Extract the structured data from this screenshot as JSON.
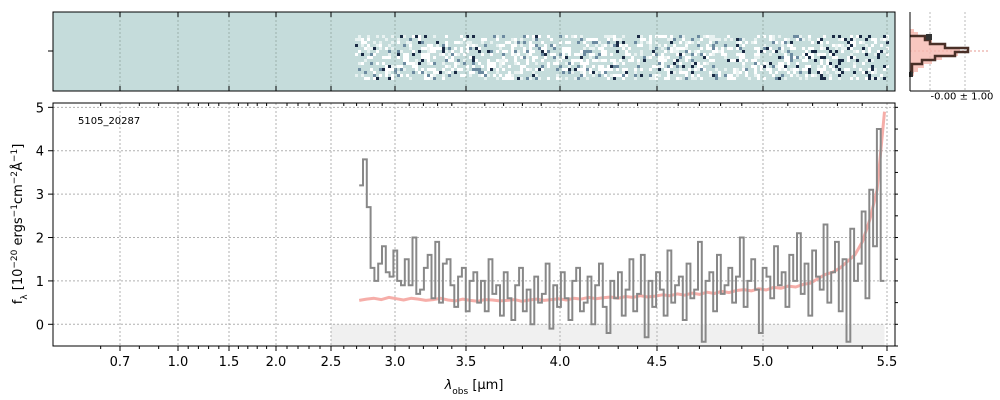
{
  "chart_data": [
    {
      "type": "heatmap",
      "panel": "2D spectrum",
      "x_label": "",
      "y_label": "",
      "description": "",
      "grid": true
    },
    {
      "type": "line",
      "panel": "1D spectrum",
      "label": "5105_20287",
      "xlabel": "λ_obs [μm]",
      "xlabel_parts": {
        "main": "λ",
        "sub": "obs",
        "unit": "[μm]"
      },
      "ylabel": "f_λ [10^-20 ergs^-1cm^-2Å^-1]",
      "ylabel_parts": {
        "main": "f",
        "sub": "λ",
        "bracket_open": "[10",
        "exp1": "−20",
        "mid1": " ergs",
        "exp2": "−1",
        "mid2": "cm",
        "exp3": "−2",
        "mid3": "Å",
        "exp4": "−1",
        "bracket_close": "]"
      },
      "x_ticks": [
        "0.7",
        "1.0",
        "1.5",
        "2.0",
        "2.5",
        "3.0",
        "3.5",
        "4.0",
        "4.5",
        "5.0",
        "5.5"
      ],
      "y_ticks": [
        "0",
        "1",
        "2",
        "3",
        "4",
        "5"
      ],
      "ylim": [
        -0.5,
        5.1
      ],
      "x_scale": "nonlinear (wavelength-stretched)",
      "grid": true,
      "series": [
        {
          "color": "#888888",
          "x_start": 2.72,
          "x_end": 5.49,
          "seed_values_note": "",
          "values": [
            3.2,
            3.8,
            2.7,
            1.3,
            1.0,
            1.4,
            1.8,
            1.2,
            1.1,
            1.7,
            1.0,
            0.9,
            1.5,
            0.9,
            2.0,
            0.7,
            0.8,
            1.3,
            1.6,
            0.6,
            1.9,
            0.5,
            1.4,
            1.5,
            0.9,
            0.4,
            1.1,
            1.3,
            0.3,
            1.0,
            1.2,
            0.5,
            1.0,
            0.3,
            1.5,
            0.7,
            0.9,
            0.2,
            1.2,
            0.6,
            0.1,
            0.9,
            1.3,
            0.3,
            0.8,
            0.0,
            1.1,
            0.5,
            0.7,
            1.4,
            -0.1,
            0.9,
            0.4,
            1.2,
            0.6,
            0.1,
            1.0,
            1.3,
            0.3,
            0.5,
            1.1,
            0.0,
            0.9,
            1.4,
            0.4,
            -0.2,
            1.0,
            0.6,
            1.2,
            0.2,
            0.8,
            1.5,
            0.3,
            0.7,
            1.6,
            -0.3,
            1.0,
            0.4,
            1.2,
            0.8,
            0.2,
            1.7,
            0.5,
            0.9,
            1.1,
            0.1,
            1.4,
            0.6,
            0.8,
            1.9,
            -0.4,
            1.0,
            1.2,
            0.3,
            1.6,
            0.7,
            0.9,
            1.3,
            0.5,
            1.1,
            2.0,
            0.4,
            1.0,
            1.5,
            0.8,
            -0.2,
            1.3,
            1.1,
            0.6,
            1.8,
            0.9,
            1.2,
            0.4,
            1.6,
            1.0,
            2.1,
            0.7,
            1.4,
            0.2,
            1.7,
            1.1,
            0.8,
            2.3,
            0.5,
            1.2,
            1.9,
            0.3,
            1.5,
            -0.4,
            2.2,
            1.0,
            1.4,
            2.6,
            0.6,
            3.1,
            1.8,
            4.5,
            1.0
          ]
        },
        {
          "color": "#f4a09a",
          "name": "",
          "values": [
            0.55,
            0.58,
            0.6,
            0.57,
            0.62,
            0.59,
            0.56,
            0.6,
            0.58,
            0.55,
            0.57,
            0.6,
            0.56,
            0.54,
            0.58,
            0.55,
            0.53,
            0.57,
            0.56,
            0.54,
            0.55,
            0.57,
            0.53,
            0.56,
            0.58,
            0.55,
            0.57,
            0.59,
            0.56,
            0.6,
            0.58,
            0.62,
            0.59,
            0.61,
            0.63,
            0.6,
            0.64,
            0.62,
            0.66,
            0.63,
            0.65,
            0.68,
            0.66,
            0.7,
            0.67,
            0.72,
            0.69,
            0.74,
            0.71,
            0.76,
            0.73,
            0.78,
            0.8,
            0.77,
            0.82,
            0.79,
            0.85,
            0.83,
            0.88,
            0.86,
            0.92,
            0.95,
            1.05,
            1.15,
            1.2,
            1.3,
            1.45,
            1.6,
            1.9,
            2.4,
            3.1,
            4.9
          ]
        }
      ]
    },
    {
      "type": "histogram",
      "panel": "pixel distribution",
      "annotation": "-0.00 ± 1.00"
    }
  ],
  "colors": {
    "panel_bg_2d": "#c5dcdb",
    "dark_pixel": "#1a2a44",
    "spectrum": "#888888",
    "model": "#f4a09a",
    "grid": "#b0b0b0",
    "hist_dark": "#4a3028",
    "hist_light": "#f6b9b0"
  }
}
